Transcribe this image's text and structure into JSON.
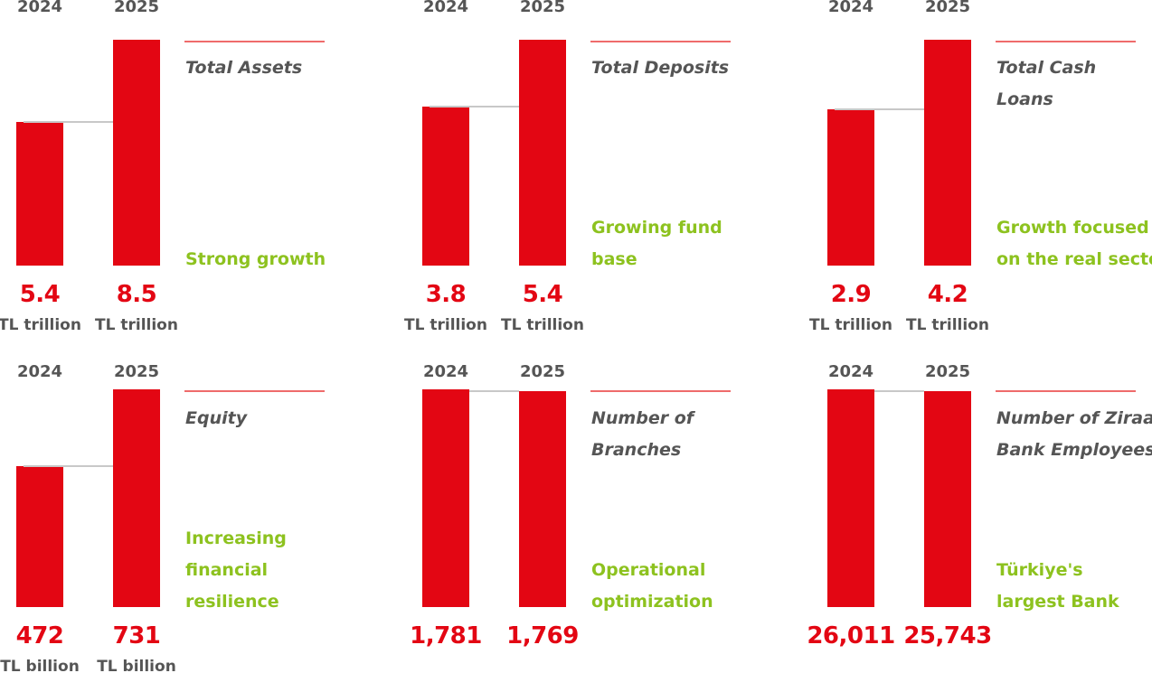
{
  "colors": {
    "bar": "#e30613",
    "value_text": "#e30613",
    "label_text": "#555555",
    "note_text": "#8dc21f",
    "rule": "#ef6b6b",
    "connector": "#c8c8c8"
  },
  "chart_data": [
    {
      "type": "bar",
      "title": "Total Assets",
      "note": "Strong growth",
      "categories": [
        "2024",
        "2025"
      ],
      "values": [
        5.4,
        8.5
      ],
      "value_labels": [
        "5.4",
        "8.5"
      ],
      "units": [
        "TL trillion",
        "TL trillion"
      ]
    },
    {
      "type": "bar",
      "title": "Total Deposits",
      "note": "Growing fund\nbase",
      "categories": [
        "2024",
        "2025"
      ],
      "values": [
        3.8,
        5.4
      ],
      "value_labels": [
        "3.8",
        "5.4"
      ],
      "units": [
        "TL trillion",
        "TL trillion"
      ]
    },
    {
      "type": "bar",
      "title": "Total Cash\nLoans",
      "note": "Growth focused\non the real sector",
      "categories": [
        "2024",
        "2025"
      ],
      "values": [
        2.9,
        4.2
      ],
      "value_labels": [
        "2.9",
        "4.2"
      ],
      "units": [
        "TL trillion",
        "TL trillion"
      ]
    },
    {
      "type": "bar",
      "title": "Equity",
      "note": "Increasing\nfinancial\nresilience",
      "categories": [
        "2024",
        "2025"
      ],
      "values": [
        472,
        731
      ],
      "value_labels": [
        "472",
        "731"
      ],
      "units": [
        "TL billion",
        "TL billion"
      ]
    },
    {
      "type": "bar",
      "title": "Number of\nBranches",
      "note": "Operational\noptimization",
      "categories": [
        "2024",
        "2025"
      ],
      "values": [
        1781,
        1769
      ],
      "value_labels": [
        "1,781",
        "1,769"
      ],
      "units": [
        "",
        ""
      ]
    },
    {
      "type": "bar",
      "title": "Number of Ziraat\nBank Employees",
      "note": "Türkiye's\nlargest Bank",
      "categories": [
        "2024",
        "2025"
      ],
      "values": [
        26011,
        25743
      ],
      "value_labels": [
        "26,011",
        "25,743"
      ],
      "units": [
        "",
        ""
      ]
    }
  ]
}
